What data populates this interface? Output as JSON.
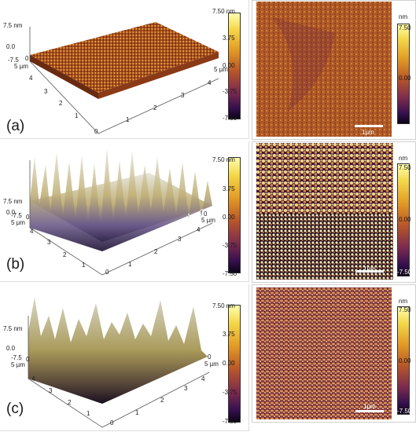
{
  "panels": [
    {
      "letter": "(a)",
      "z_top": "7.5 nm",
      "z_mid": "0.0",
      "z_bottom": "-7.5",
      "axis_um": "5 µm",
      "axis_ticks": [
        "4",
        "3",
        "2",
        "1",
        "0"
      ],
      "x_ticks": [
        "1",
        "2",
        "3",
        "4"
      ],
      "origin": "0",
      "cb3d": [
        "7.50 nm",
        "3.75",
        "0.00",
        "-3.75",
        "-7.50"
      ],
      "cb2d_unit": "nm",
      "cb2d": [
        "7.50",
        "0.00",
        "-7.50"
      ],
      "scale": "1µm"
    },
    {
      "letter": "(b)",
      "z_top": "7.5 nm",
      "z_mid": "0.0",
      "z_bottom": "-7.5",
      "axis_um": "5 µm",
      "axis_ticks": [
        "4",
        "3",
        "2",
        "1",
        "0"
      ],
      "x_ticks": [
        "1",
        "2",
        "3",
        "4"
      ],
      "origin": "0",
      "cb3d": [
        "7.50 nm",
        "3.75",
        "0.00",
        "-3.75",
        "-7.50"
      ],
      "cb2d_unit": "nm",
      "cb2d": [
        "7.50",
        "0.00",
        "-7.50"
      ],
      "scale": "1µm"
    },
    {
      "letter": "(c)",
      "z_top": "7.5 nm",
      "z_mid": "0.0",
      "z_bottom": "-7.5",
      "axis_um": "5 µm",
      "axis_ticks": [
        "4",
        "3",
        "2",
        "1",
        "0"
      ],
      "x_ticks": [
        "1",
        "2",
        "3",
        "4"
      ],
      "origin": "0",
      "cb3d": [
        "7.50 nm",
        "3.75",
        "0.00",
        "-3.75",
        "-7.50"
      ],
      "cb2d_unit": "nm",
      "cb2d": [
        "7.50",
        "0.00",
        "-7.50"
      ],
      "scale": "1µm"
    }
  ]
}
